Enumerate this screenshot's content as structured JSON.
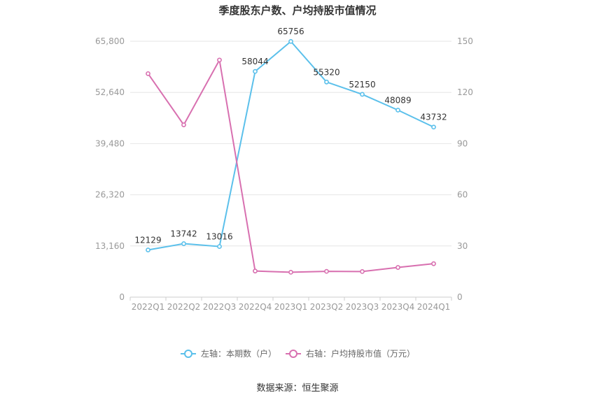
{
  "chart_data": {
    "type": "line",
    "title": "季度股东户数、户均持股市值情况",
    "categories": [
      "2022Q1",
      "2022Q2",
      "2022Q3",
      "2022Q4",
      "2023Q1",
      "2023Q2",
      "2023Q3",
      "2023Q4",
      "2024Q1"
    ],
    "series": [
      {
        "name": "左轴：本期数（户）",
        "axis": "left",
        "color": "#5bc0eb",
        "values": [
          12129,
          13742,
          13016,
          58044,
          65756,
          55320,
          52150,
          48089,
          43732
        ],
        "labels": [
          "12129",
          "13742",
          "13016",
          "58044",
          "65756",
          "55320",
          "52150",
          "48089",
          "43732"
        ]
      },
      {
        "name": "右轴：户均持股市值（万元）",
        "axis": "right",
        "color": "#d870b0",
        "values": [
          131,
          101,
          139,
          15.3,
          14.6,
          15.1,
          15.0,
          17.4,
          19.6
        ]
      }
    ],
    "y_left": {
      "ylim": [
        0,
        65800
      ],
      "ticks": [
        "0",
        "13,160",
        "26,320",
        "39,480",
        "52,640",
        "65,800"
      ]
    },
    "y_right": {
      "ylim": [
        0,
        150
      ],
      "ticks": [
        "0",
        "30",
        "60",
        "90",
        "120",
        "150"
      ]
    },
    "grid": true,
    "legend": "bottom-center",
    "source": "数据来源：恒生聚源"
  }
}
